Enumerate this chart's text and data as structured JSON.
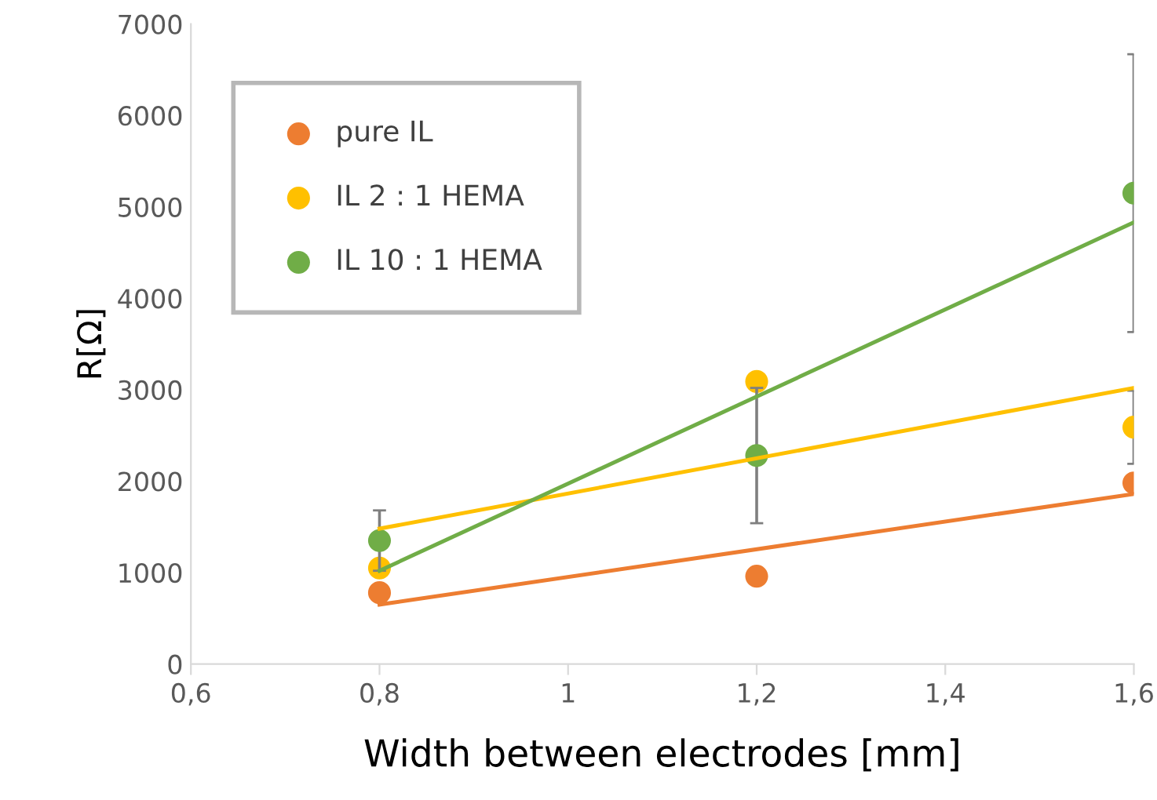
{
  "chart_data": {
    "type": "scatter",
    "xlabel": "Width between electrodes [mm]",
    "ylabel": "R[Ω]",
    "xlim": [
      0.6,
      1.6
    ],
    "ylim": [
      0,
      7000
    ],
    "xticks": [
      {
        "value": 0.6,
        "label": "0,6"
      },
      {
        "value": 0.8,
        "label": "0,8"
      },
      {
        "value": 1,
        "label": "1"
      },
      {
        "value": 1.2,
        "label": "1,2"
      },
      {
        "value": 1.4,
        "label": "1,4"
      },
      {
        "value": 1.6,
        "label": "1,6"
      }
    ],
    "yticks": [
      0,
      1000,
      2000,
      3000,
      4000,
      5000,
      6000,
      7000
    ],
    "grid": false,
    "legend": "top left",
    "series": [
      {
        "name": "pure IL",
        "marker": "circle",
        "color": "#ed7d31",
        "x": [
          0.8,
          1.2,
          1.6
        ],
        "values": [
          780,
          960,
          1980
        ]
      },
      {
        "name": "IL 2 : 1 HEMA",
        "marker": "circle",
        "color": "#ffc000",
        "x": [
          0.8,
          1.2,
          1.6
        ],
        "values": [
          1050,
          3090,
          2590
        ],
        "errors": [
          null,
          null,
          400
        ]
      },
      {
        "name": "IL 10 : 1 HEMA",
        "marker": "circle",
        "color": "#70ad47",
        "x": [
          0.8,
          1.2,
          1.6
        ],
        "values": [
          1350,
          2280,
          5150
        ],
        "errors": [
          330,
          740,
          1520
        ]
      },
      {
        "type": "line",
        "marker": "none",
        "color": "#ed7d31",
        "x": [
          0.8,
          1.6
        ],
        "values": [
          650,
          1860
        ]
      },
      {
        "type": "line",
        "marker": "none",
        "color": "#ffc000",
        "x": [
          0.8,
          1.6
        ],
        "values": [
          1480,
          3020
        ]
      },
      {
        "type": "line",
        "marker": "none",
        "color": "#70ad47",
        "x": [
          0.8,
          1.6
        ],
        "values": [
          1020,
          4830
        ]
      }
    ]
  }
}
